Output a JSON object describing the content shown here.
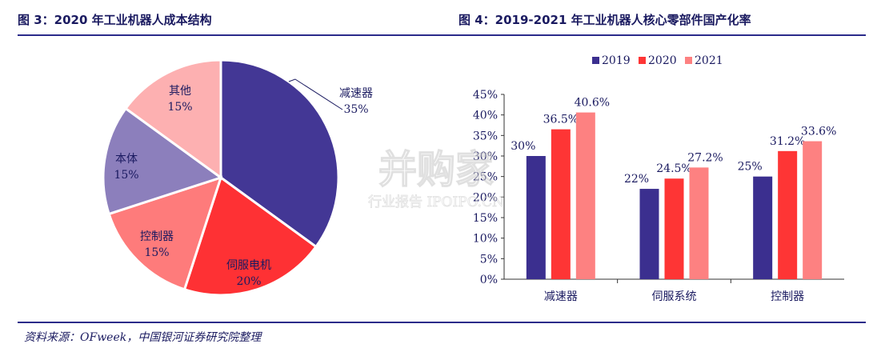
{
  "figures": {
    "left_title": "图 3：2020 年工业机器人成本结构",
    "right_title": "图 4：2019-2021 年工业机器人核心零部件国产化率",
    "source": "资料来源：OFweek，中国银河证券研究院整理",
    "watermark": {
      "brand": "并购家",
      "sub": "行业报告 IPOIPO.CN"
    }
  },
  "chart_data": [
    {
      "type": "pie",
      "title": "2020 年工业机器人成本结构",
      "slices": [
        {
          "label": "减速器",
          "value": 35,
          "display": "35%",
          "color": "#433795"
        },
        {
          "label": "伺服电机",
          "value": 20,
          "display": "20%",
          "color": "#fe3134"
        },
        {
          "label": "控制器",
          "value": 15,
          "display": "15%",
          "color": "#fe7b7b"
        },
        {
          "label": "本体",
          "value": 15,
          "display": "15%",
          "color": "#8c7fbc"
        },
        {
          "label": "其他",
          "value": 15,
          "display": "15%",
          "color": "#fdb0b1"
        }
      ]
    },
    {
      "type": "bar",
      "title": "2019-2021 年工业机器人核心零部件国产化率",
      "categories": [
        "减速器",
        "伺服系统",
        "控制器"
      ],
      "series": [
        {
          "name": "2019",
          "values": [
            30,
            22,
            25
          ],
          "labels": [
            "30%",
            "22%",
            "25%"
          ],
          "color": "#3b2f8f"
        },
        {
          "name": "2020",
          "values": [
            36.5,
            24.5,
            31.2
          ],
          "labels": [
            "36.5%",
            "24.5%",
            "31.2%"
          ],
          "color": "#fe3535"
        },
        {
          "name": "2021",
          "values": [
            40.6,
            27.2,
            33.6
          ],
          "labels": [
            "40.6%",
            "27.2%",
            "33.6%"
          ],
          "color": "#fd8181"
        }
      ],
      "ylim": [
        0,
        45
      ],
      "yticks": [
        "0%",
        "5%",
        "10%",
        "15%",
        "20%",
        "25%",
        "30%",
        "35%",
        "40%",
        "45%"
      ],
      "legend_position": "top",
      "grid": false
    }
  ]
}
